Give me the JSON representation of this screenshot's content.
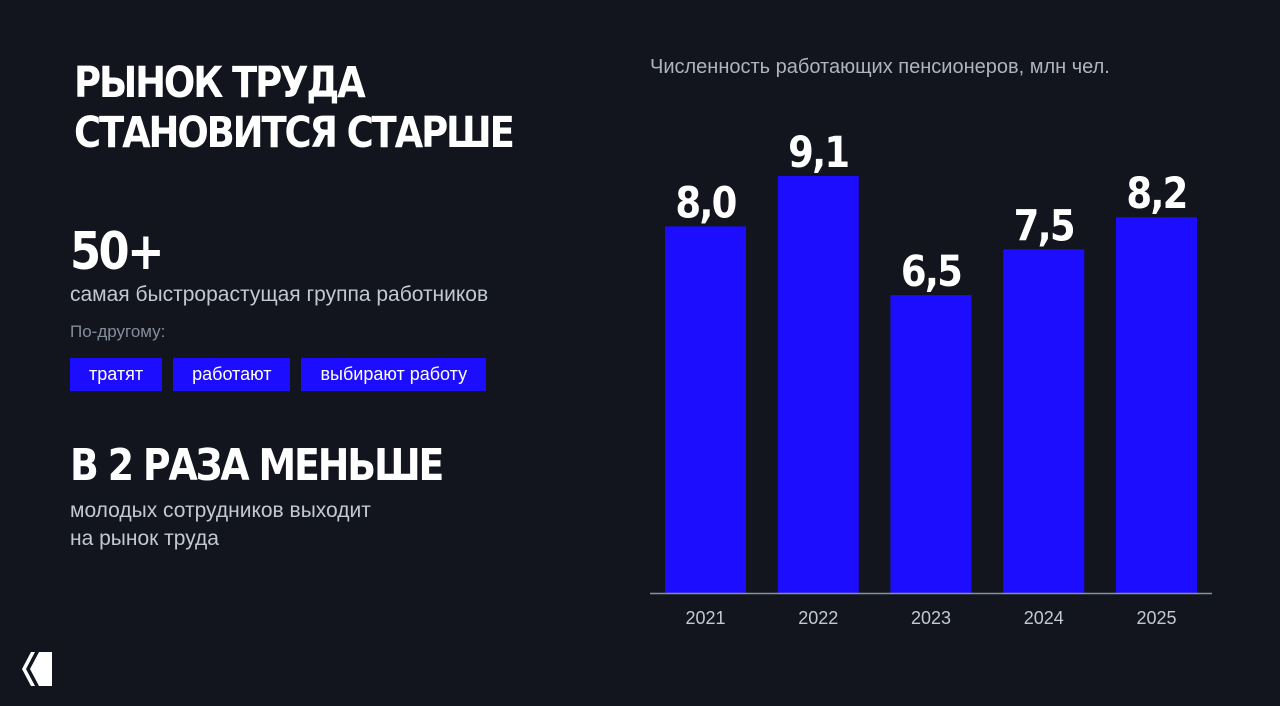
{
  "headline": {
    "line1": "РЫНОК ТРУДА",
    "line2": "СТАНОВИТСЯ СТАРШЕ"
  },
  "stat": {
    "value": "50+",
    "caption": "самая быстрорастущая группа работников"
  },
  "alt": {
    "label": "По-другому:",
    "tags": [
      "тратят",
      "работают",
      "выбирают работу"
    ]
  },
  "fact2": {
    "headline": "В 2 РАЗА МЕНЬШЕ",
    "caption_line1": "молодых сотрудников выходит",
    "caption_line2": "на рынок труда"
  },
  "colors": {
    "bar": "#1d0dff",
    "background": "#12151d",
    "axis": "#8a8f9c"
  },
  "chart_data": {
    "type": "bar",
    "title": "Численность работающих пенсионеров, млн чел.",
    "categories": [
      "2021",
      "2022",
      "2023",
      "2024",
      "2025"
    ],
    "values": [
      8.0,
      9.1,
      6.5,
      7.5,
      8.2
    ],
    "value_labels": [
      "8,0",
      "9,1",
      "6,5",
      "7,5",
      "8,2"
    ],
    "ylim": [
      0,
      9.1
    ],
    "grid": false,
    "legend": "none"
  },
  "logo": {
    "icon": "brand-logo-icon"
  }
}
